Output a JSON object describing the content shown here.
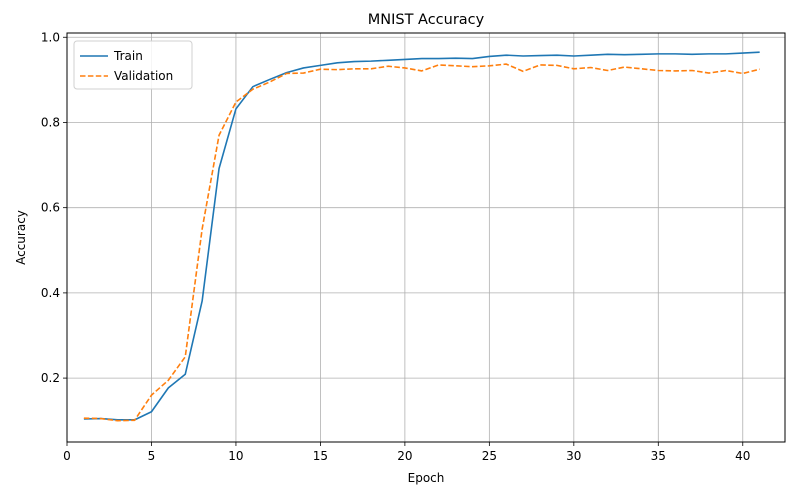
{
  "chart_data": {
    "type": "line",
    "title": "MNIST Accuracy",
    "xlabel": "Epoch",
    "ylabel": "Accuracy",
    "xlim": [
      0,
      42.5
    ],
    "ylim": [
      0.05,
      1.01
    ],
    "xticks": [
      0,
      5,
      10,
      15,
      20,
      25,
      30,
      35,
      40
    ],
    "yticks": [
      0.2,
      0.4,
      0.6,
      0.8,
      1.0
    ],
    "xtick_labels": [
      "0",
      "5",
      "10",
      "15",
      "20",
      "25",
      "30",
      "35",
      "40"
    ],
    "ytick_labels": [
      "0.2",
      "0.4",
      "0.6",
      "0.8",
      "1.0"
    ],
    "grid": true,
    "legend_position": "top-left",
    "x": [
      1,
      2,
      3,
      4,
      5,
      6,
      7,
      8,
      9,
      10,
      11,
      12,
      13,
      14,
      15,
      16,
      17,
      18,
      19,
      20,
      21,
      22,
      23,
      24,
      25,
      26,
      27,
      28,
      29,
      30,
      31,
      32,
      33,
      34,
      35,
      36,
      37,
      38,
      39,
      40,
      41
    ],
    "series": [
      {
        "name": "Train",
        "color": "#1f77b4",
        "dash": "solid",
        "values": [
          0.104,
          0.105,
          0.102,
          0.102,
          0.121,
          0.177,
          0.209,
          0.381,
          0.692,
          0.832,
          0.884,
          0.901,
          0.917,
          0.928,
          0.934,
          0.94,
          0.943,
          0.944,
          0.946,
          0.948,
          0.95,
          0.95,
          0.951,
          0.95,
          0.955,
          0.958,
          0.956,
          0.957,
          0.958,
          0.956,
          0.958,
          0.96,
          0.959,
          0.96,
          0.961,
          0.961,
          0.96,
          0.961,
          0.961,
          0.963,
          0.965
        ]
      },
      {
        "name": "Validation",
        "color": "#ff7f0e",
        "dash": "dashed",
        "values": [
          0.106,
          0.105,
          0.1,
          0.101,
          0.16,
          0.195,
          0.25,
          0.55,
          0.77,
          0.848,
          0.878,
          0.895,
          0.915,
          0.916,
          0.925,
          0.924,
          0.926,
          0.926,
          0.932,
          0.928,
          0.921,
          0.935,
          0.933,
          0.931,
          0.933,
          0.937,
          0.92,
          0.935,
          0.934,
          0.926,
          0.929,
          0.922,
          0.93,
          0.926,
          0.922,
          0.921,
          0.922,
          0.916,
          0.922,
          0.915,
          0.925
        ]
      }
    ]
  }
}
